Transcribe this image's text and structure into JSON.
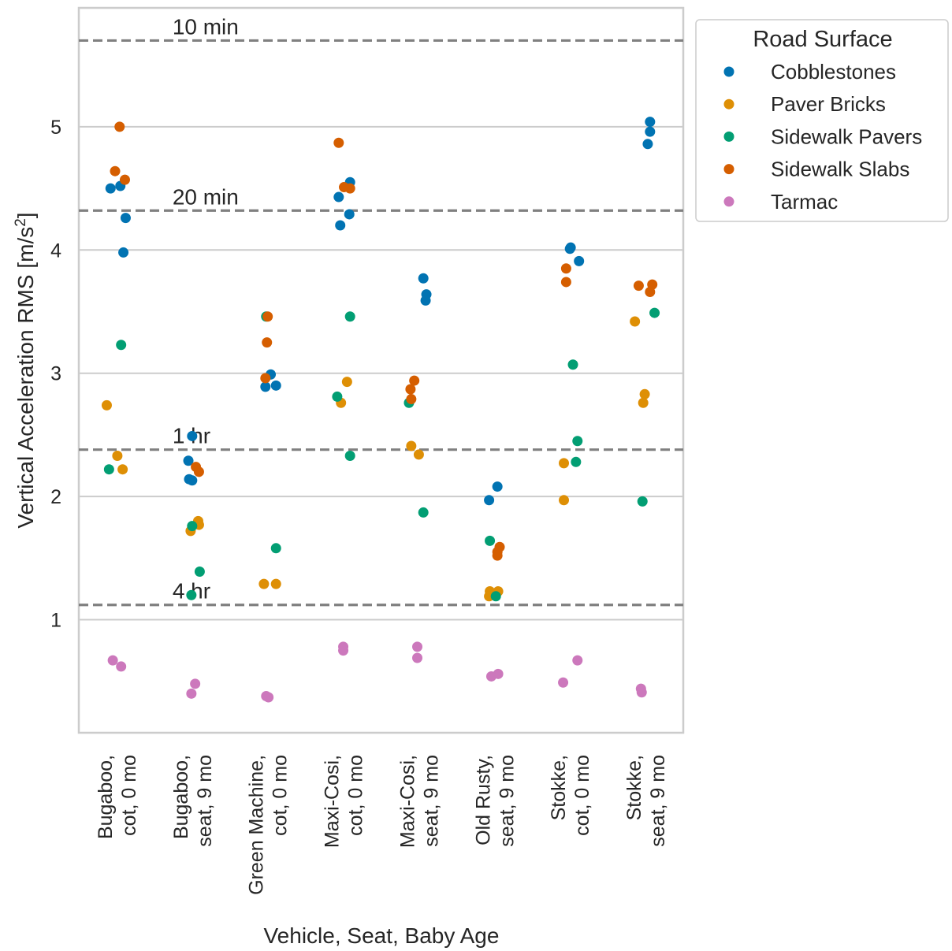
{
  "chart_data": {
    "type": "scatter",
    "xlabel": "Vehicle, Seat, Baby Age",
    "ylabel_main": "Vertical Acceleration RMS [m/s",
    "ylabel_sup": "2",
    "ylabel_close": "]",
    "ylim": [
      0.07,
      5.95
    ],
    "yticks": [
      "1",
      "2",
      "3",
      "4",
      "5"
    ],
    "yticks_values": [
      1,
      2,
      3,
      4,
      5
    ],
    "grid": true,
    "legend_placement": "outside-right",
    "categories": [
      [
        "Bugaboo,",
        "cot, 0 mo"
      ],
      [
        "Bugaboo,",
        "seat, 9 mo"
      ],
      [
        "Green Machine,",
        "cot, 0 mo"
      ],
      [
        "Maxi-Cosi,",
        "cot, 0 mo"
      ],
      [
        "Maxi-Cosi,",
        "seat, 9 mo"
      ],
      [
        "Old Rusty,",
        "seat, 9 mo"
      ],
      [
        "Stokke,",
        "cot, 0 mo"
      ],
      [
        "Stokke,",
        "seat, 9 mo"
      ]
    ],
    "reference_lines": [
      {
        "label": "10 min",
        "value": 5.7
      },
      {
        "label": "20 min",
        "value": 4.32
      },
      {
        "label": "1 hr",
        "value": 2.38
      },
      {
        "label": "4 hr",
        "value": 1.12
      }
    ],
    "legend_title": "Road Surface",
    "series": [
      {
        "name": "Cobblestones",
        "color": "#0173b2",
        "points": [
          [
            0,
            -0.08,
            4.5
          ],
          [
            0,
            0.05,
            4.52
          ],
          [
            0,
            0.12,
            4.26
          ],
          [
            0,
            0.09,
            3.98
          ],
          [
            1,
            0.0,
            2.49
          ],
          [
            1,
            -0.05,
            2.29
          ],
          [
            1,
            -0.04,
            2.14
          ],
          [
            1,
            0.0,
            2.13
          ],
          [
            2,
            0.04,
            2.99
          ],
          [
            2,
            -0.03,
            2.89
          ],
          [
            2,
            0.11,
            2.9
          ],
          [
            3,
            0.09,
            4.55
          ],
          [
            3,
            -0.06,
            4.43
          ],
          [
            3,
            0.08,
            4.29
          ],
          [
            3,
            -0.04,
            4.2
          ],
          [
            4,
            0.06,
            3.77
          ],
          [
            4,
            0.1,
            3.64
          ],
          [
            4,
            0.09,
            3.59
          ],
          [
            5,
            -0.07,
            1.97
          ],
          [
            5,
            0.04,
            2.08
          ],
          [
            6,
            0.01,
            4.02
          ],
          [
            6,
            0.0,
            4.01
          ],
          [
            6,
            0.12,
            3.91
          ],
          [
            7,
            0.06,
            5.04
          ],
          [
            7,
            0.06,
            4.96
          ],
          [
            7,
            0.03,
            4.86
          ]
        ]
      },
      {
        "name": "Paver Bricks",
        "color": "#de8f05",
        "points": [
          [
            0,
            -0.13,
            2.74
          ],
          [
            0,
            0.01,
            2.33
          ],
          [
            0,
            0.08,
            2.22
          ],
          [
            1,
            0.08,
            1.8
          ],
          [
            1,
            0.09,
            1.77
          ],
          [
            1,
            -0.02,
            1.72
          ],
          [
            2,
            -0.05,
            1.29
          ],
          [
            2,
            0.11,
            1.29
          ],
          [
            3,
            0.05,
            2.93
          ],
          [
            3,
            -0.03,
            2.76
          ],
          [
            4,
            -0.1,
            2.41
          ],
          [
            4,
            0.0,
            2.34
          ],
          [
            5,
            -0.06,
            1.23
          ],
          [
            5,
            0.05,
            1.23
          ],
          [
            5,
            -0.07,
            1.19
          ],
          [
            6,
            -0.08,
            2.27
          ],
          [
            6,
            -0.08,
            1.97
          ],
          [
            7,
            -0.14,
            3.42
          ],
          [
            7,
            -0.01,
            2.83
          ],
          [
            7,
            -0.03,
            2.76
          ]
        ]
      },
      {
        "name": "Sidewalk Pavers",
        "color": "#029e73",
        "points": [
          [
            0,
            0.06,
            3.23
          ],
          [
            0,
            -0.1,
            2.22
          ],
          [
            1,
            0.0,
            1.76
          ],
          [
            1,
            0.1,
            1.39
          ],
          [
            1,
            -0.01,
            1.2
          ],
          [
            2,
            -0.02,
            3.46
          ],
          [
            2,
            0.11,
            1.58
          ],
          [
            3,
            0.09,
            3.46
          ],
          [
            3,
            -0.08,
            2.81
          ],
          [
            3,
            0.09,
            2.33
          ],
          [
            4,
            -0.13,
            2.76
          ],
          [
            4,
            0.06,
            1.87
          ],
          [
            5,
            -0.06,
            1.64
          ],
          [
            5,
            0.02,
            1.19
          ],
          [
            6,
            0.04,
            3.07
          ],
          [
            6,
            0.1,
            2.45
          ],
          [
            6,
            0.08,
            2.28
          ],
          [
            7,
            0.12,
            3.49
          ],
          [
            7,
            -0.04,
            1.96
          ]
        ]
      },
      {
        "name": "Sidewalk Slabs",
        "color": "#d55e00",
        "points": [
          [
            0,
            0.04,
            5.0
          ],
          [
            0,
            -0.02,
            4.64
          ],
          [
            0,
            0.11,
            4.57
          ],
          [
            1,
            0.05,
            2.24
          ],
          [
            1,
            0.09,
            2.2
          ],
          [
            2,
            0.0,
            3.46
          ],
          [
            2,
            -0.01,
            3.25
          ],
          [
            2,
            -0.03,
            2.96
          ],
          [
            3,
            -0.06,
            4.87
          ],
          [
            3,
            0.01,
            4.51
          ],
          [
            3,
            0.09,
            4.5
          ],
          [
            4,
            -0.06,
            2.94
          ],
          [
            4,
            -0.11,
            2.87
          ],
          [
            4,
            -0.1,
            2.79
          ],
          [
            5,
            0.07,
            1.59
          ],
          [
            5,
            0.04,
            1.55
          ],
          [
            5,
            0.04,
            1.52
          ],
          [
            6,
            -0.05,
            3.85
          ],
          [
            6,
            -0.05,
            3.74
          ],
          [
            7,
            0.09,
            3.72
          ],
          [
            7,
            -0.09,
            3.71
          ],
          [
            7,
            0.06,
            3.66
          ]
        ]
      },
      {
        "name": "Tarmac",
        "color": "#cc78bc",
        "points": [
          [
            0,
            -0.05,
            0.67
          ],
          [
            0,
            0.06,
            0.62
          ],
          [
            1,
            0.04,
            0.48
          ],
          [
            1,
            -0.01,
            0.4
          ],
          [
            2,
            -0.02,
            0.38
          ],
          [
            2,
            0.01,
            0.37
          ],
          [
            3,
            0.0,
            0.78
          ],
          [
            3,
            0.0,
            0.75
          ],
          [
            4,
            -0.02,
            0.78
          ],
          [
            4,
            -0.02,
            0.69
          ],
          [
            5,
            -0.04,
            0.54
          ],
          [
            5,
            0.05,
            0.56
          ],
          [
            6,
            -0.09,
            0.49
          ],
          [
            6,
            0.1,
            0.67
          ],
          [
            7,
            -0.06,
            0.44
          ],
          [
            7,
            -0.05,
            0.41
          ]
        ]
      }
    ]
  }
}
